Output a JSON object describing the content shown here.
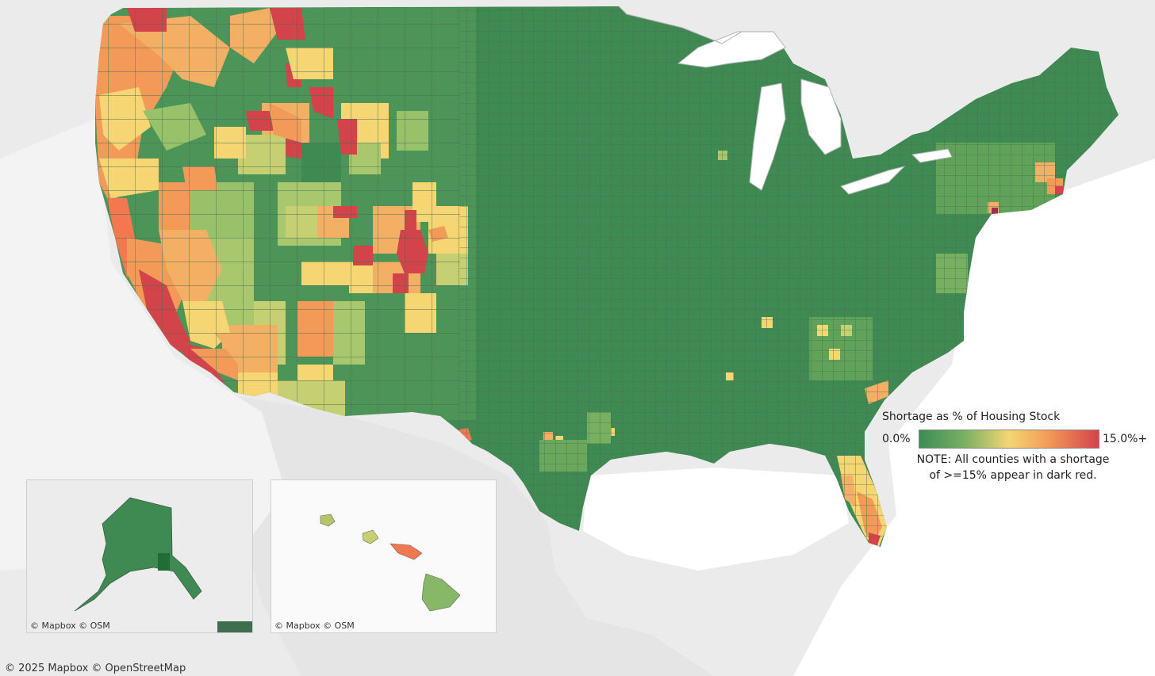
{
  "legend": {
    "title": "Shortage as % of Housing Stock",
    "min_label": "0.0%",
    "max_label": "15.0%+",
    "note_line1": "NOTE: All counties with a shortage",
    "note_line2": "of >=15% appear in dark red.",
    "colors": [
      "#3c8c55",
      "#78b062",
      "#f5d673",
      "#f39a58",
      "#d2434a"
    ]
  },
  "credits": {
    "main": "© 2025 Mapbox  © OpenStreetMap",
    "alaska_inset": "© Mapbox  © OSM",
    "hawaii_inset": "© Mapbox  © OSM"
  },
  "colors": {
    "land_background": "#dcdcdc",
    "water": "#ffffff",
    "county_border": "#555555"
  }
}
